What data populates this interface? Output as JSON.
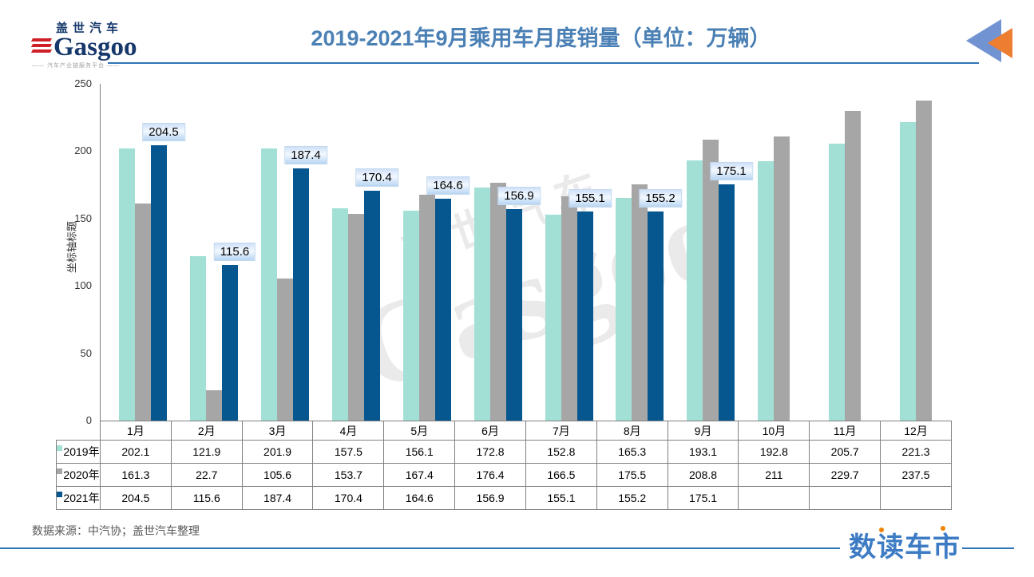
{
  "header": {
    "logo": {
      "brand_cn": "盖世汽车",
      "brand": "Gasgoo",
      "tagline": "—— 汽车产业链服务平台 ——"
    },
    "title": "2019-2021年9月乘用车月度销量（单位：万辆）",
    "nav_icon": "double-back-arrows-icon"
  },
  "watermark": {
    "cn": "盖世汽车",
    "en": "Gasgoo"
  },
  "chart_data": {
    "type": "bar",
    "title": "2019-2021年9月乘用车月度销量（单位：万辆）",
    "unit": "万辆",
    "categories": [
      "1月",
      "2月",
      "3月",
      "4月",
      "5月",
      "6月",
      "7月",
      "8月",
      "9月",
      "10月",
      "11月",
      "12月"
    ],
    "series": [
      {
        "name": "2019年",
        "color": "#a2e0d6",
        "values": [
          202.1,
          121.9,
          201.9,
          157.5,
          156.1,
          172.8,
          152.8,
          165.3,
          193.1,
          192.8,
          205.7,
          221.3
        ]
      },
      {
        "name": "2020年",
        "color": "#a6a6a6",
        "values": [
          161.3,
          22.7,
          105.6,
          153.7,
          167.4,
          176.4,
          166.5,
          175.5,
          208.8,
          211,
          229.7,
          237.5
        ]
      },
      {
        "name": "2021年",
        "color": "#06568f",
        "data_labels": true,
        "values": [
          204.5,
          115.6,
          187.4,
          170.4,
          164.6,
          156.9,
          155.1,
          155.2,
          175.1,
          null,
          null,
          null
        ]
      }
    ],
    "ylabel": "坐标轴标题",
    "yticks": [
      0,
      50,
      100,
      150,
      200,
      250
    ],
    "ylim": [
      0,
      250
    ],
    "grid": false,
    "legend_position": "table-left"
  },
  "footer": {
    "source": "数据来源：中汽协；盖世汽车整理",
    "brand": "数读车市"
  }
}
